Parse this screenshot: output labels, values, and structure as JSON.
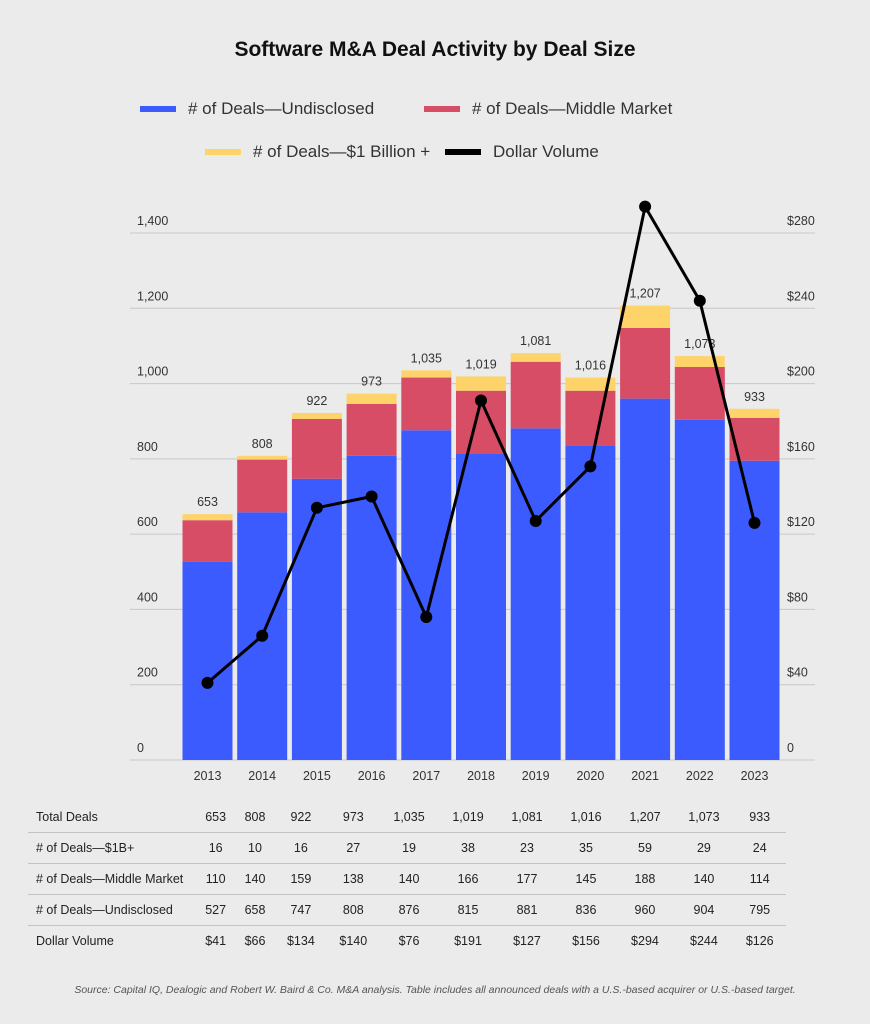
{
  "chart_data": {
    "type": "bar",
    "title": "Software M&A Deal Activity by Deal Size",
    "categories": [
      "2013",
      "2014",
      "2015",
      "2016",
      "2017",
      "2018",
      "2019",
      "2020",
      "2021",
      "2022",
      "2023"
    ],
    "stacked": true,
    "series": [
      {
        "name": "# of Deals—Undisclosed",
        "color": "#3b5bff",
        "values": [
          527,
          658,
          747,
          808,
          876,
          815,
          881,
          836,
          960,
          904,
          795
        ]
      },
      {
        "name": "# of Deals—Middle Market",
        "color": "#d64d65",
        "values": [
          110,
          140,
          159,
          138,
          140,
          166,
          177,
          145,
          188,
          140,
          114
        ]
      },
      {
        "name": "# of Deals—$1 Billion +",
        "color": "#fdd36a",
        "values": [
          16,
          10,
          16,
          27,
          19,
          38,
          23,
          35,
          59,
          29,
          24
        ]
      }
    ],
    "line_series": {
      "name": "Dollar Volume",
      "color": "#000000",
      "axis": "right",
      "values": [
        41,
        66,
        134,
        140,
        76,
        191,
        127,
        156,
        294,
        244,
        126
      ]
    },
    "bar_labels": [
      "653",
      "808",
      "922",
      "973",
      "1,035",
      "1,019",
      "1,081",
      "1,016",
      "1,207",
      "1,073",
      "933"
    ],
    "ylim": [
      0,
      1400
    ],
    "y_ticks": [
      "0",
      "200",
      "400",
      "600",
      "800",
      "1,000",
      "1,200",
      "1,400"
    ],
    "y2lim": [
      0,
      280
    ],
    "y2_ticks": [
      "0",
      "$40",
      "$80",
      "$120",
      "$160",
      "$200",
      "$240",
      "$280"
    ],
    "legend_placement": "top",
    "grid": true
  },
  "legend": [
    {
      "label": "# of Deals—Undisclosed",
      "color": "#3b5bff"
    },
    {
      "label": "# of Deals—Middle Market",
      "color": "#d64d65"
    },
    {
      "label": "# of Deals—$1 Billion +",
      "color": "#fdd36a"
    },
    {
      "label": "Dollar Volume",
      "color": "#000000"
    }
  ],
  "table": {
    "rows": [
      {
        "label": "Total Deals",
        "values": [
          "653",
          "808",
          "922",
          "973",
          "1,035",
          "1,019",
          "1,081",
          "1,016",
          "1,207",
          "1,073",
          "933"
        ]
      },
      {
        "label": "# of Deals—$1B+",
        "values": [
          "16",
          "10",
          "16",
          "27",
          "19",
          "38",
          "23",
          "35",
          "59",
          "29",
          "24"
        ]
      },
      {
        "label": "# of Deals—Middle Market",
        "values": [
          "110",
          "140",
          "159",
          "138",
          "140",
          "166",
          "177",
          "145",
          "188",
          "140",
          "114"
        ]
      },
      {
        "label": "# of Deals—Undisclosed",
        "values": [
          "527",
          "658",
          "747",
          "808",
          "876",
          "815",
          "881",
          "836",
          "960",
          "904",
          "795"
        ]
      },
      {
        "label": "Dollar Volume",
        "values": [
          "$41",
          "$66",
          "$134",
          "$140",
          "$76",
          "$191",
          "$127",
          "$156",
          "$294",
          "$244",
          "$126"
        ]
      }
    ]
  },
  "source": "Source: Capital IQ, Dealogic and Robert W. Baird & Co. M&A analysis. Table includes all announced deals with a U.S.-based acquirer or U.S.-based target."
}
